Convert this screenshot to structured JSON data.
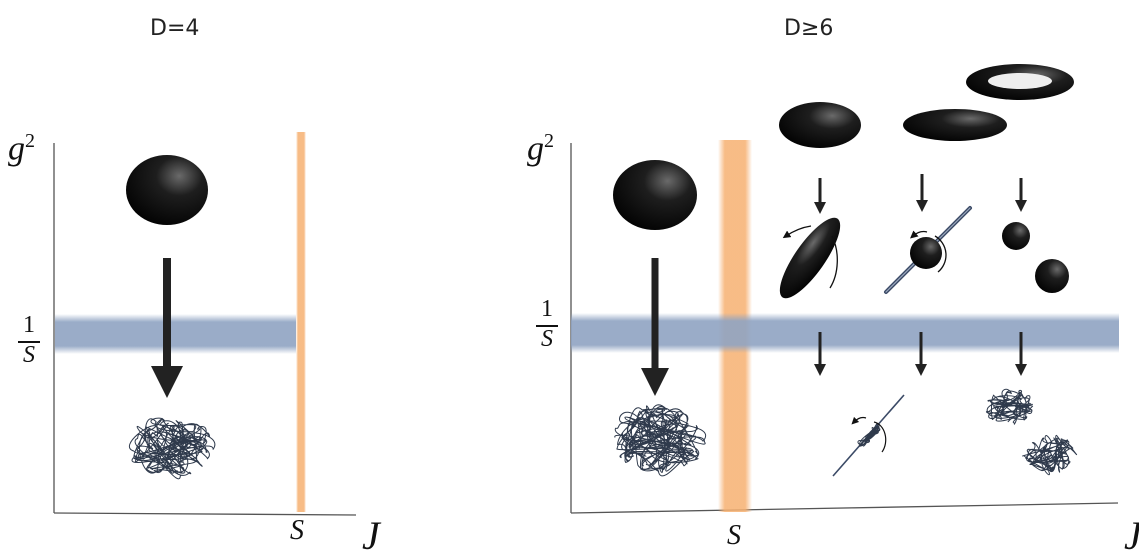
{
  "left_panel": {
    "title": "D=4",
    "y_axis_label": "g",
    "y_axis_exponent": "2",
    "coupling_line_num": "1",
    "coupling_line_den": "S",
    "x_axis_label": "J",
    "x_tick_label": "S"
  },
  "right_panel": {
    "title": "D≥6",
    "y_axis_label": "g",
    "y_axis_exponent": "2",
    "coupling_line_num": "1",
    "coupling_line_den": "S",
    "x_axis_label": "J",
    "x_tick_label": "S"
  },
  "colors": {
    "horizon_band": "#8fa3c2",
    "spin_band": "#f6b070",
    "blob": "#111111",
    "string": "#2f3a4c",
    "axis": "#555555"
  }
}
